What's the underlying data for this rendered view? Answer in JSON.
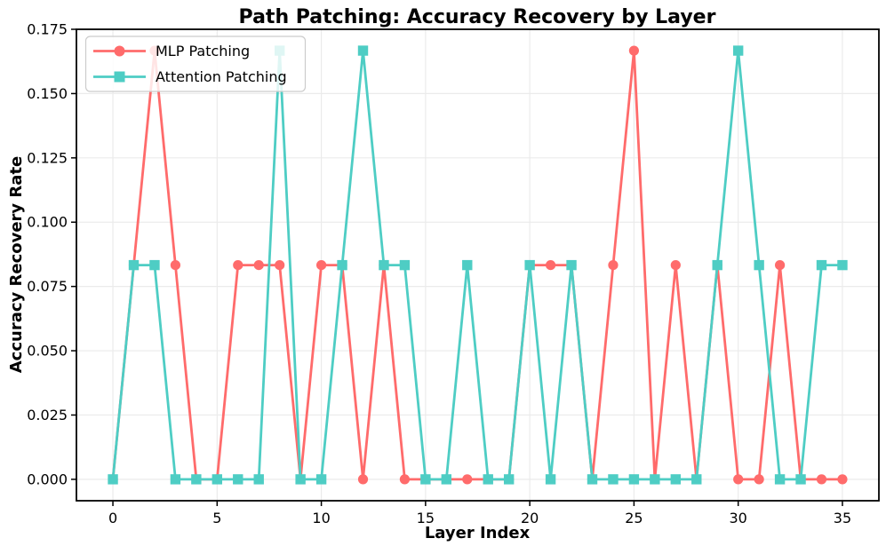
{
  "chart_data": {
    "type": "line",
    "title": "Path Patching: Accuracy Recovery by Layer",
    "xlabel": "Layer Index",
    "ylabel": "Accuracy Recovery Rate",
    "x": [
      0,
      1,
      2,
      3,
      4,
      5,
      6,
      7,
      8,
      9,
      10,
      11,
      12,
      13,
      14,
      15,
      16,
      17,
      18,
      19,
      20,
      21,
      22,
      23,
      24,
      25,
      26,
      27,
      28,
      29,
      30,
      31,
      32,
      33,
      34,
      35
    ],
    "series": [
      {
        "name": "MLP Patching",
        "color": "#FF6B6B",
        "marker": "circle",
        "values": [
          0,
          0.0833,
          0.1667,
          0.0833,
          0,
          0,
          0.0833,
          0.0833,
          0.0833,
          0,
          0.0833,
          0.0833,
          0,
          0.0833,
          0,
          0,
          0,
          0,
          0,
          0,
          0.0833,
          0.0833,
          0.0833,
          0,
          0.0833,
          0.1667,
          0,
          0.0833,
          0,
          0.0833,
          0,
          0,
          0.0833,
          0,
          0,
          0
        ]
      },
      {
        "name": "Attention Patching",
        "color": "#4ECDC4",
        "marker": "square",
        "values": [
          0,
          0.0833,
          0.0833,
          0,
          0,
          0,
          0,
          0,
          0.1667,
          0,
          0,
          0.0833,
          0.1667,
          0.0833,
          0.0833,
          0,
          0,
          0.0833,
          0,
          0,
          0.0833,
          0,
          0.0833,
          0,
          0,
          0,
          0,
          0,
          0,
          0.0833,
          0.1667,
          0.0833,
          0,
          0,
          0.0833,
          0.0833
        ]
      }
    ],
    "x_ticks": {
      "values": [
        0,
        5,
        10,
        15,
        20,
        25,
        30,
        35
      ],
      "labels": [
        "0",
        "5",
        "10",
        "15",
        "20",
        "25",
        "30",
        "35"
      ]
    },
    "y_ticks": {
      "values": [
        0,
        0.025,
        0.05,
        0.075,
        0.1,
        0.125,
        0.15,
        0.175
      ],
      "labels": [
        "0.000",
        "0.025",
        "0.050",
        "0.075",
        "0.100",
        "0.125",
        "0.150",
        "0.175"
      ]
    },
    "xlim": [
      -1.75,
      36.75
    ],
    "ylim": [
      -0.00833,
      0.175
    ],
    "grid": true,
    "legend_position": "upper left",
    "colors": {
      "grid": "#ebebeb",
      "spine": "#000000",
      "text": "#000000",
      "legend_border": "#cccccc",
      "background": "#ffffff"
    }
  }
}
